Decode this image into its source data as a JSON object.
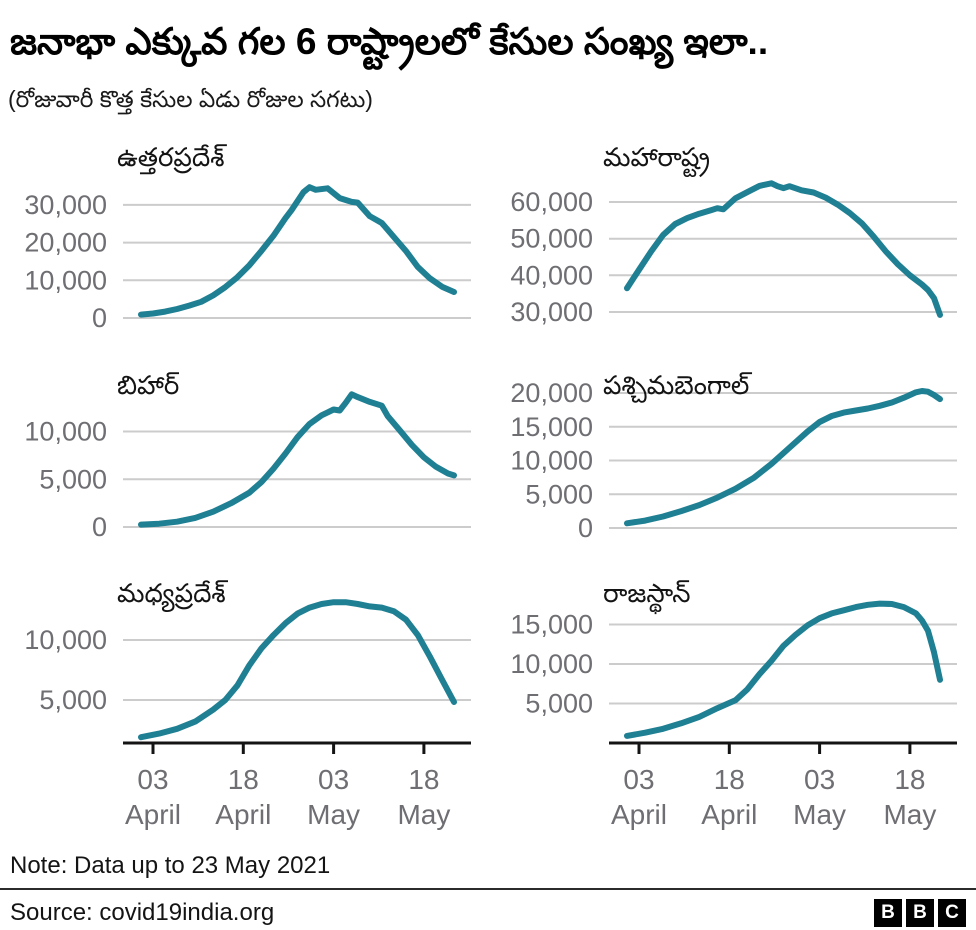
{
  "header": {
    "title": "జనాభా ఎక్కువ గల 6 రాష్ట్రాలలో కేసుల సంఖ్య ఇలా..",
    "subtitle": "(రోజువారీ కొత్త కేసుల ఏడు రోజుల సగటు)"
  },
  "colors": {
    "line": "#1f7f93",
    "grid": "#cccccc",
    "tick_text": "#6e6e73",
    "axis": "#141414",
    "text": "#141414"
  },
  "x_axis": {
    "unit": "days since 1 April 2021",
    "tick_days": [
      2,
      17,
      32,
      47
    ],
    "tick_labels": [
      {
        "day": "03",
        "month": "April"
      },
      {
        "day": "18",
        "month": "April"
      },
      {
        "day": "03",
        "month": "May"
      },
      {
        "day": "18",
        "month": "May"
      }
    ]
  },
  "chart_data": [
    {
      "id": "uttar-pradesh",
      "type": "line",
      "title": "ఉత్తరప్రదేశ్",
      "xlabel": "",
      "ylabel": "",
      "ylim": [
        0,
        35500
      ],
      "yticks": [
        0,
        10000,
        20000,
        30000
      ],
      "x": [
        0,
        2,
        4,
        6,
        8,
        10,
        12,
        14,
        16,
        18,
        20,
        22,
        24,
        25,
        27,
        28,
        29,
        31,
        33,
        35,
        36,
        38,
        40,
        42,
        44,
        46,
        48,
        50,
        52
      ],
      "values": [
        900,
        1200,
        1700,
        2400,
        3300,
        4300,
        6000,
        8200,
        10800,
        14000,
        17800,
        21800,
        26500,
        28600,
        33400,
        34700,
        34000,
        34400,
        31800,
        30800,
        30600,
        27000,
        25200,
        21500,
        17800,
        13500,
        10500,
        8300,
        6900
      ]
    },
    {
      "id": "maharashtra",
      "type": "line",
      "title": "మహారాష్ట్ర",
      "xlabel": "",
      "ylabel": "",
      "ylim": [
        28000,
        66000
      ],
      "yticks": [
        30000,
        40000,
        50000,
        60000
      ],
      "x": [
        0,
        2,
        4,
        6,
        8,
        10,
        12,
        14,
        15,
        16,
        18,
        20,
        22,
        24,
        25,
        26,
        27,
        29,
        31,
        33,
        35,
        37,
        39,
        41,
        43,
        45,
        47,
        49,
        50,
        51,
        52
      ],
      "values": [
        36500,
        41500,
        46500,
        51000,
        54000,
        55600,
        56800,
        57800,
        58300,
        58000,
        61000,
        62700,
        64400,
        65100,
        64300,
        63800,
        64300,
        63200,
        62600,
        61200,
        59300,
        57000,
        54200,
        50500,
        46500,
        43000,
        40000,
        37500,
        36000,
        33800,
        29200
      ]
    },
    {
      "id": "bihar",
      "type": "line",
      "title": "బిహార్",
      "xlabel": "",
      "ylabel": "",
      "ylim": [
        0,
        14200
      ],
      "yticks": [
        0,
        5000,
        10000
      ],
      "x": [
        0,
        3,
        6,
        9,
        12,
        15,
        18,
        20,
        22,
        24,
        26,
        28,
        30,
        31,
        32,
        33,
        34,
        35,
        36,
        38,
        40,
        41,
        43,
        45,
        47,
        49,
        51,
        52
      ],
      "values": [
        250,
        350,
        550,
        950,
        1600,
        2500,
        3600,
        4700,
        6100,
        7700,
        9400,
        10800,
        11700,
        12000,
        12300,
        12200,
        13000,
        13900,
        13600,
        13100,
        12700,
        11600,
        10100,
        8600,
        7300,
        6300,
        5600,
        5400
      ]
    },
    {
      "id": "west-bengal",
      "type": "line",
      "title": "పశ్చిమబెంగాల్",
      "xlabel": "",
      "ylabel": "",
      "ylim": [
        0,
        20600
      ],
      "yticks": [
        0,
        5000,
        10000,
        15000,
        20000
      ],
      "x": [
        0,
        3,
        6,
        9,
        12,
        15,
        18,
        21,
        24,
        27,
        30,
        32,
        34,
        36,
        38,
        40,
        42,
        44,
        46,
        48,
        49,
        50,
        51,
        52
      ],
      "values": [
        700,
        1100,
        1700,
        2500,
        3400,
        4500,
        5800,
        7400,
        9500,
        11900,
        14300,
        15700,
        16600,
        17100,
        17400,
        17700,
        18100,
        18600,
        19300,
        20100,
        20300,
        20200,
        19700,
        19100
      ]
    },
    {
      "id": "madhya-pradesh",
      "type": "line",
      "title": "మధ్యప్రదేశ్",
      "xlabel": "",
      "ylabel": "",
      "ylim": [
        1400,
        13400
      ],
      "yticks": [
        5000,
        10000
      ],
      "x": [
        0,
        3,
        6,
        9,
        12,
        14,
        16,
        18,
        20,
        22,
        24,
        26,
        28,
        30,
        32,
        34,
        36,
        38,
        40,
        42,
        44,
        46,
        48,
        50,
        52
      ],
      "values": [
        1900,
        2200,
        2600,
        3200,
        4200,
        5000,
        6200,
        7900,
        9300,
        10400,
        11400,
        12200,
        12700,
        13000,
        13150,
        13150,
        13000,
        12800,
        12700,
        12400,
        11700,
        10400,
        8600,
        6700,
        4830
      ]
    },
    {
      "id": "rajasthan",
      "type": "line",
      "title": "రాజస్థాన్",
      "xlabel": "",
      "ylabel": "",
      "ylim": [
        0,
        17800
      ],
      "yticks": [
        5000,
        10000,
        15000
      ],
      "x": [
        0,
        3,
        6,
        9,
        12,
        15,
        18,
        20,
        22,
        24,
        26,
        28,
        30,
        32,
        34,
        36,
        38,
        40,
        42,
        44,
        46,
        48,
        49,
        50,
        51,
        52
      ],
      "values": [
        900,
        1300,
        1800,
        2500,
        3300,
        4400,
        5400,
        6800,
        8700,
        10400,
        12300,
        13700,
        14900,
        15800,
        16400,
        16800,
        17200,
        17500,
        17650,
        17600,
        17200,
        16400,
        15500,
        14200,
        11500,
        8000
      ]
    }
  ],
  "footer": {
    "note": "Note: Data up to 23 May 2021",
    "source": "Source: covid19india.org",
    "logo_letters": [
      "B",
      "B",
      "C"
    ]
  }
}
